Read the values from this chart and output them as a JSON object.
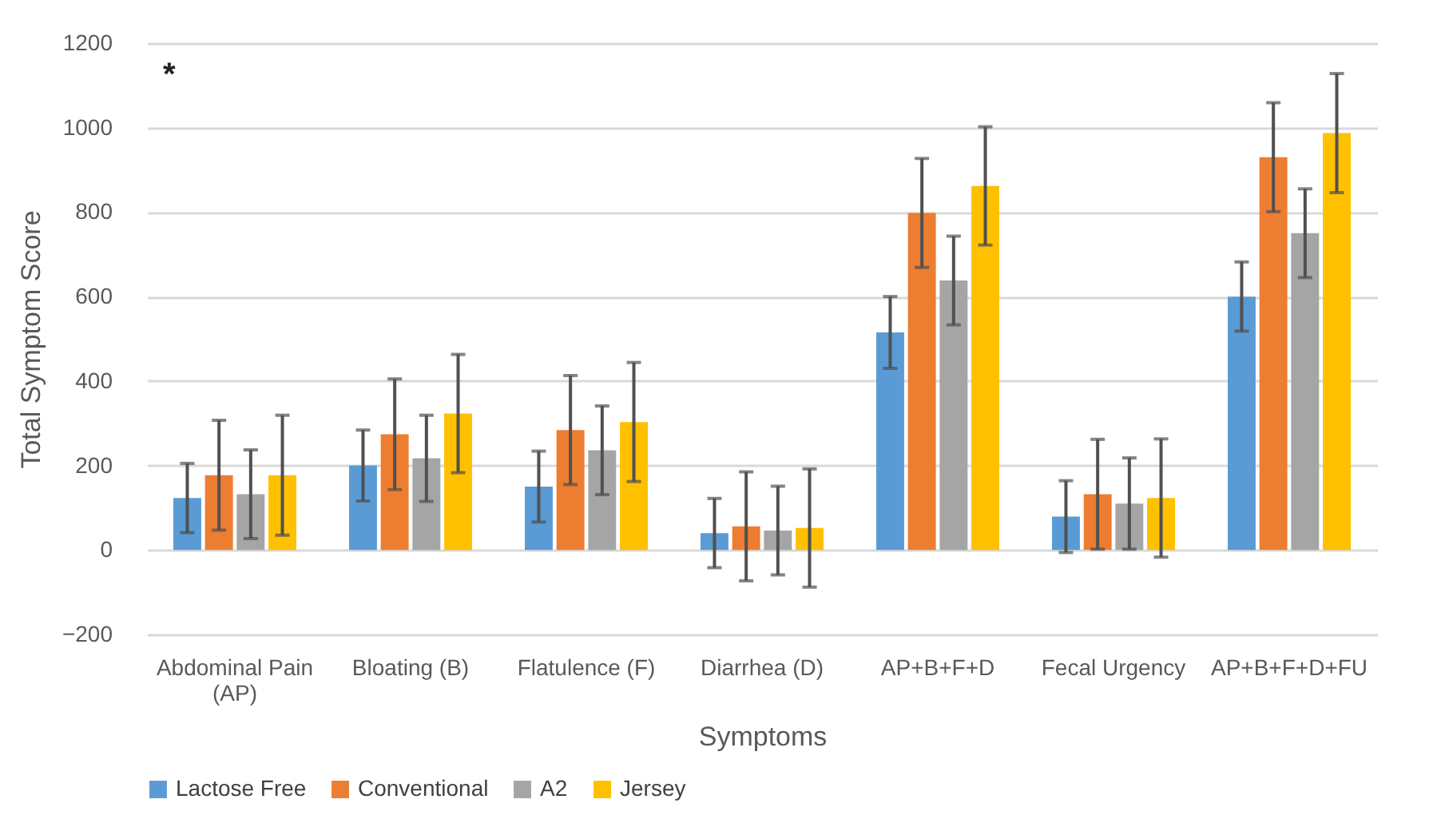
{
  "chart_data": {
    "type": "bar",
    "xlabel": "Symptoms",
    "ylabel": "Total Symptom Score",
    "categories": [
      "Abdominal Pain (AP)",
      "Bloating (B)",
      "Flatulence (F)",
      "Diarrhea (D)",
      "AP+B+F+D",
      "Fecal Urgency",
      "AP+B+F+D+FU"
    ],
    "series": [
      {
        "name": "Lactose Free",
        "color": "#5b9bd5",
        "values": [
          123,
          200,
          150,
          40,
          515,
          79,
          600
        ],
        "errors": [
          82,
          84,
          84,
          82,
          85,
          85,
          82
        ]
      },
      {
        "name": "Conventional",
        "color": "#ed7d31",
        "values": [
          177,
          274,
          284,
          56,
          798,
          132,
          930
        ],
        "errors": [
          130,
          131,
          129,
          129,
          129,
          130,
          129
        ]
      },
      {
        "name": "A2",
        "color": "#a5a5a5",
        "values": [
          132,
          217,
          236,
          46,
          638,
          110,
          750
        ],
        "errors": [
          105,
          102,
          105,
          105,
          105,
          108,
          105
        ]
      },
      {
        "name": "Jersey",
        "color": "#ffc000",
        "values": [
          177,
          323,
          303,
          52,
          862,
          123,
          987
        ],
        "errors": [
          142,
          140,
          141,
          140,
          140,
          140,
          141
        ]
      }
    ],
    "annotations": [
      "*"
    ],
    "ylim": [
      -200,
      1200
    ],
    "yticks": [
      -200,
      0,
      200,
      400,
      600,
      800,
      1000,
      1200
    ],
    "grid": "y",
    "legend": "bottom"
  }
}
